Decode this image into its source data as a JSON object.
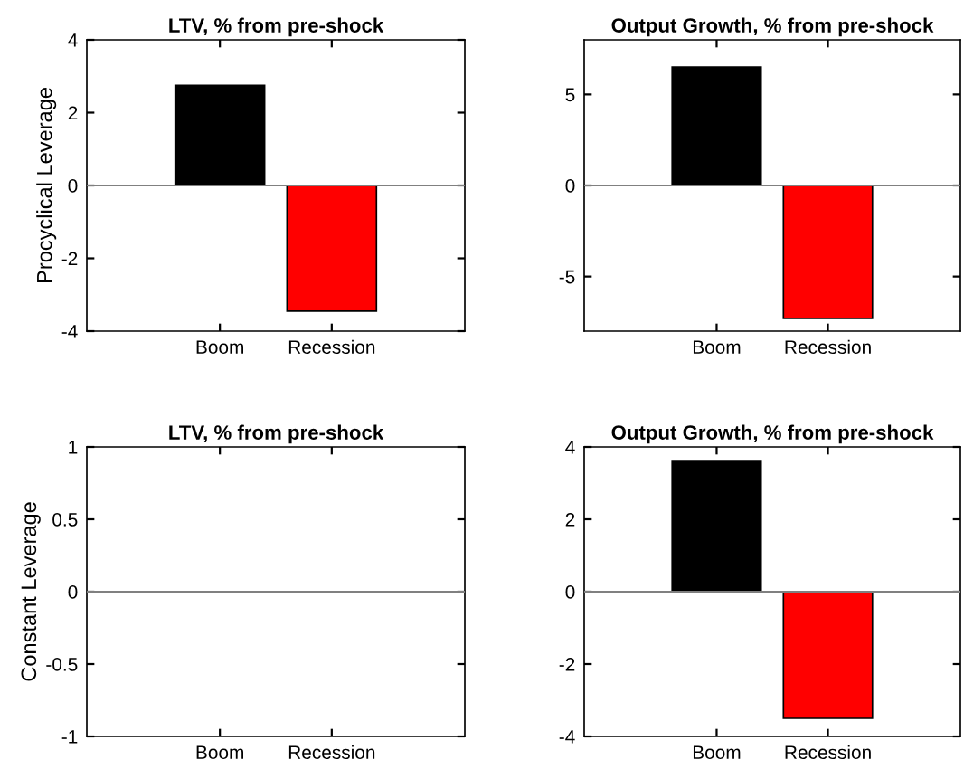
{
  "chart_data": [
    {
      "type": "bar",
      "title": "LTV, % from pre-shock",
      "ylabel": "Procyclical Leverage",
      "categories": [
        "Boom",
        "Recession"
      ],
      "values": [
        2.75,
        -3.45
      ],
      "colors": [
        "#000000",
        "#ff0000"
      ],
      "ylim": [
        -4,
        4
      ],
      "yticks": [
        -4,
        -2,
        0,
        2,
        4
      ],
      "grid": false,
      "legend": false,
      "ref_lines": [
        {
          "axis": "y",
          "value": 0,
          "color": "#808080"
        }
      ]
    },
    {
      "type": "bar",
      "title": "Output Growth, % from pre-shock",
      "categories": [
        "Boom",
        "Recession"
      ],
      "values": [
        6.5,
        -7.3
      ],
      "colors": [
        "#000000",
        "#ff0000"
      ],
      "ylim": [
        -8,
        8
      ],
      "yticks": [
        {
          "value": -5,
          "label": "-5"
        },
        0,
        5
      ],
      "grid": false,
      "legend": false,
      "ref_lines": [
        {
          "axis": "y",
          "value": 0,
          "color": "#808080"
        }
      ]
    },
    {
      "type": "bar",
      "title": "LTV, % from pre-shock",
      "ylabel": "Constant Leverage",
      "categories": [
        "Boom",
        "Recession"
      ],
      "values": [
        0,
        0
      ],
      "colors": [
        "#000000",
        "#000000"
      ],
      "ylim": [
        -1,
        1
      ],
      "yticks": [
        -1,
        -0.5,
        0,
        0.5,
        1
      ],
      "grid": false,
      "legend": false,
      "ref_lines": [
        {
          "axis": "y",
          "value": 0,
          "color": "#808080"
        }
      ]
    },
    {
      "type": "bar",
      "title": "Output Growth, % from pre-shock",
      "categories": [
        "Boom",
        "Recession"
      ],
      "values": [
        3.6,
        -3.5
      ],
      "colors": [
        "#000000",
        "#ff0000"
      ],
      "ylim": [
        -4,
        4
      ],
      "yticks": [
        -4,
        -2,
        0,
        2,
        4
      ],
      "grid": false,
      "legend": false,
      "ref_lines": [
        {
          "axis": "y",
          "value": 0,
          "color": "#808080"
        }
      ]
    }
  ]
}
